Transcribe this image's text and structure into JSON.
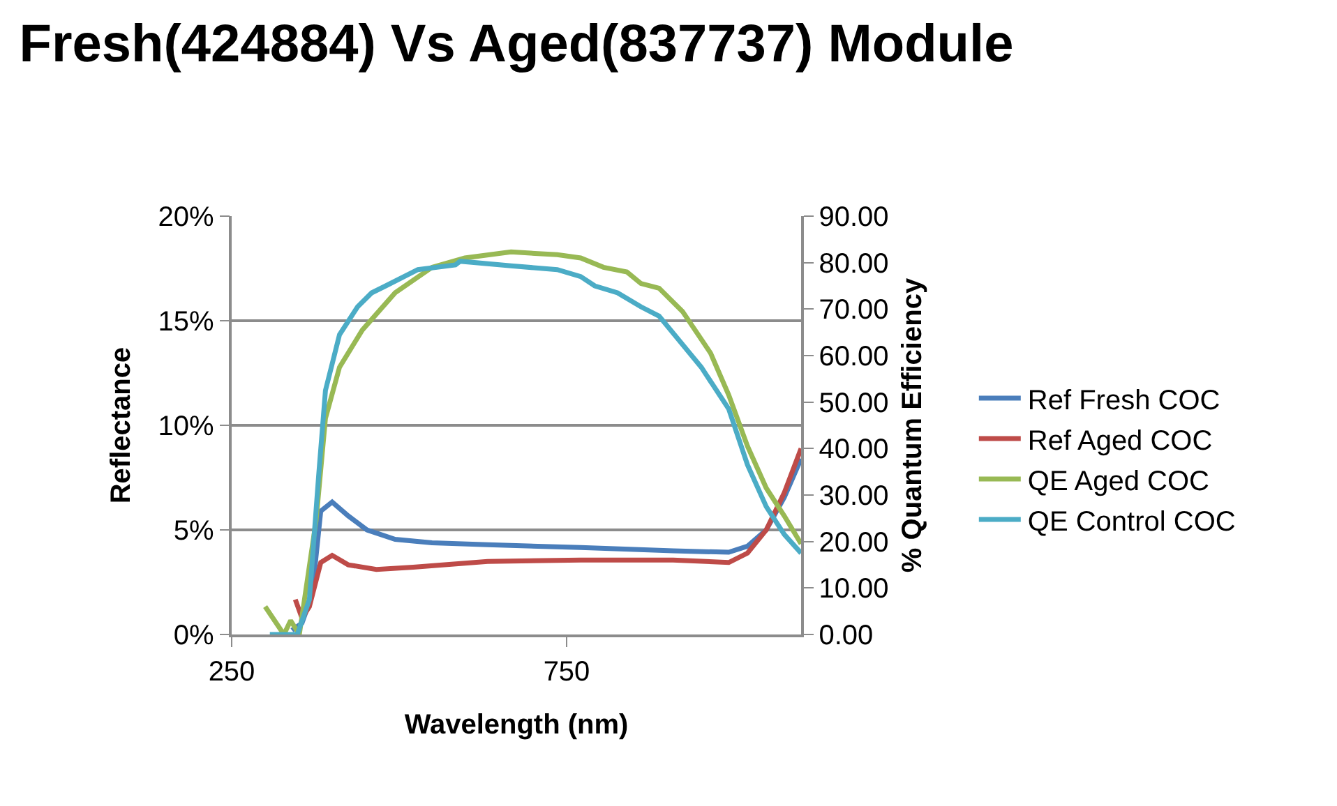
{
  "chart_data": {
    "type": "line",
    "title": "Fresh(424884) Vs Aged(837737) Module",
    "xlabel": "Wavelength (nm)",
    "ylabel": "Reflectance",
    "y2label": "% Quantum Efficiency",
    "xlim": [
      250,
      1100
    ],
    "xticks": [
      250,
      750
    ],
    "ylim": [
      0,
      0.2
    ],
    "yticks": [
      {
        "value": 0,
        "label": "0%"
      },
      {
        "value": 0.05,
        "label": "5%"
      },
      {
        "value": 0.1,
        "label": "10%"
      },
      {
        "value": 0.15,
        "label": "15%"
      },
      {
        "value": 0.2,
        "label": "20%"
      }
    ],
    "y2lim": [
      0,
      90
    ],
    "y2ticks": [
      {
        "value": 0,
        "label": "0.00"
      },
      {
        "value": 10,
        "label": "10.00"
      },
      {
        "value": 20,
        "label": "20.00"
      },
      {
        "value": 30,
        "label": "30.00"
      },
      {
        "value": 40,
        "label": "40.00"
      },
      {
        "value": 50,
        "label": "50.00"
      },
      {
        "value": 60,
        "label": "60.00"
      },
      {
        "value": 70,
        "label": "70.00"
      },
      {
        "value": 80,
        "label": "80.00"
      },
      {
        "value": 90,
        "label": "90.00"
      }
    ],
    "grid": "y",
    "legend": "right",
    "marker": "none",
    "line_style": "solid",
    "series": [
      {
        "name": "Ref Fresh COC",
        "color": "#4a7ebb",
        "x": [
          340,
          355,
          370,
          383,
          400,
          424,
          452,
          494,
          549,
          632,
          771,
          909,
          992,
          1020,
          1048,
          1075,
          1100
        ],
        "values": [
          0.002,
          0.0055,
          0.019,
          0.059,
          0.0633,
          0.0567,
          0.05,
          0.0455,
          0.0438,
          0.0429,
          0.0416,
          0.04,
          0.0393,
          0.0422,
          0.05,
          0.0656,
          0.084
        ]
      },
      {
        "name": "Ref Aged COC",
        "color": "#be4b48",
        "x": [
          345,
          355,
          366,
          383,
          400,
          424,
          466,
          521,
          632,
          771,
          909,
          992,
          1020,
          1048,
          1075,
          1100
        ],
        "values": [
          0.0167,
          0.0078,
          0.0133,
          0.0344,
          0.0378,
          0.0333,
          0.0311,
          0.0322,
          0.0349,
          0.0356,
          0.0356,
          0.0344,
          0.0389,
          0.05,
          0.0678,
          0.0889
        ]
      },
      {
        "name": "QE Aged COC",
        "color": "#98b954",
        "axis": "y2",
        "x": [
          300,
          328,
          338,
          351,
          376,
          390,
          411,
          445,
          494,
          549,
          598,
          667,
          736,
          771,
          805,
          840,
          861,
          888,
          923,
          965,
          992,
          1020,
          1048,
          1075,
          1100
        ],
        "values": [
          6,
          0,
          3,
          0,
          24.5,
          46.5,
          57.5,
          65.5,
          73.5,
          79,
          81,
          82.3,
          81.7,
          81,
          79,
          78,
          75.5,
          74.5,
          69.5,
          60.5,
          51.5,
          40.5,
          31.5,
          25.5,
          19.5
        ]
      },
      {
        "name": "QE Control COC",
        "color": "#4bacc6",
        "axis": "y2",
        "x": [
          307,
          348,
          366,
          380,
          390,
          411,
          438,
          459,
          480,
          528,
          584,
          591,
          667,
          736,
          771,
          792,
          826,
          861,
          888,
          951,
          992,
          1020,
          1048,
          1075,
          1100
        ],
        "values": [
          0,
          0,
          7.5,
          34.5,
          52.5,
          64.5,
          70.5,
          73.5,
          75,
          78.5,
          79.5,
          80.3,
          79.3,
          78.5,
          77,
          75,
          73.5,
          70.5,
          68.5,
          57.5,
          48.5,
          36.5,
          27.5,
          21.5,
          17.5
        ]
      }
    ]
  }
}
